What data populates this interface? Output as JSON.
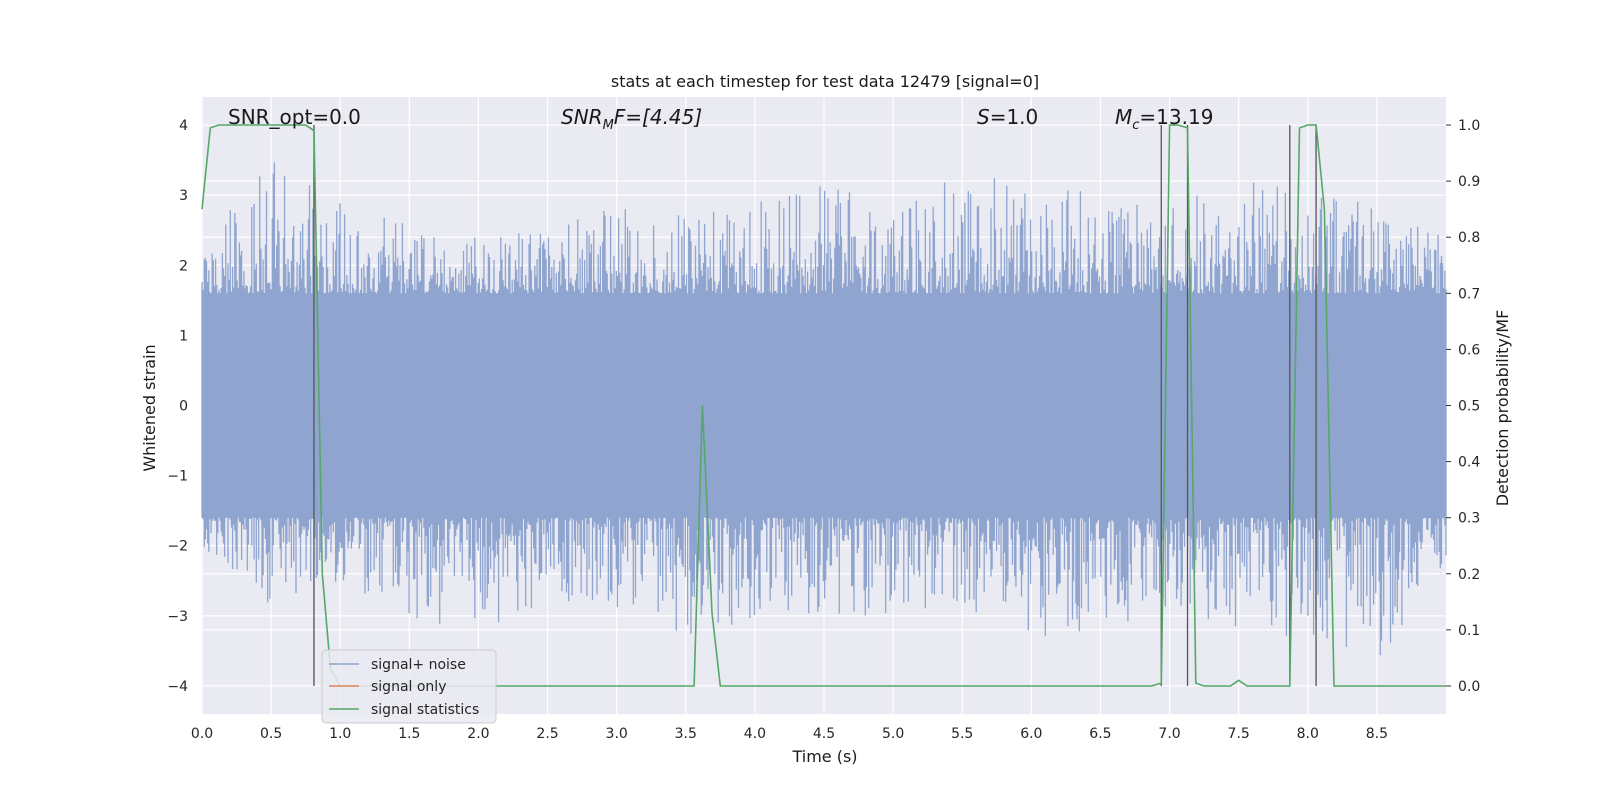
{
  "chart_data": {
    "type": "line",
    "title": "stats at each timestep for test data 12479 [signal=0]",
    "xlabel": "Time (s)",
    "ylabel": "Whitened strain",
    "y2label": "Detection probability/MF",
    "xlim": [
      0.0,
      9.0
    ],
    "ylim": [
      -4.4,
      4.4
    ],
    "y2lim": [
      -0.05,
      1.05
    ],
    "xticks": [
      "0.0",
      "0.5",
      "1.0",
      "1.5",
      "2.0",
      "2.5",
      "3.0",
      "3.5",
      "4.0",
      "4.5",
      "5.0",
      "5.5",
      "6.0",
      "6.5",
      "7.0",
      "7.5",
      "8.0",
      "8.5"
    ],
    "yticks": [
      "4",
      "3",
      "2",
      "1",
      "0",
      "−1",
      "−2",
      "−3",
      "−4"
    ],
    "y2ticks": [
      "1.0",
      "0.9",
      "0.8",
      "0.7",
      "0.6",
      "0.5",
      "0.4",
      "0.3",
      "0.2",
      "0.1",
      "0.0"
    ],
    "grid": true,
    "legend_position": "lower-left",
    "annotations": {
      "snr_opt": "SNR_opt=0.0",
      "snr_mf_main": "SNR",
      "snr_mf_sub": "M",
      "snr_mf_rest": "F=[4.45]",
      "s_main": "S",
      "s_rest": "=1.0",
      "mc_main": "M",
      "mc_sub": "c",
      "mc_rest": "=13.19"
    },
    "noise_envelope": {
      "x": [
        0.0,
        0.5,
        1.0,
        1.5,
        2.0,
        2.5,
        3.0,
        3.5,
        4.0,
        4.5,
        5.0,
        5.5,
        6.0,
        6.5,
        7.0,
        7.5,
        8.0,
        8.5,
        9.0
      ],
      "upper": [
        2.3,
        3.5,
        2.9,
        2.6,
        2.4,
        2.5,
        2.9,
        2.7,
        2.9,
        3.3,
        2.8,
        3.5,
        3.4,
        3.0,
        2.8,
        3.3,
        3.0,
        2.9,
        2.4
      ],
      "lower": [
        -2.0,
        -2.9,
        -2.5,
        -3.1,
        -3.2,
        -2.9,
        -2.9,
        -3.4,
        -3.1,
        -3.0,
        -3.1,
        -2.9,
        -3.4,
        -3.2,
        -3.0,
        -3.3,
        -3.3,
        -3.7,
        -2.5
      ],
      "dense": 1.6
    },
    "vertical_lines": [
      0.81,
      6.94,
      7.13,
      7.87,
      8.06
    ],
    "series": [
      {
        "name": "signal+ noise",
        "color": "#8fa5cf",
        "x": [],
        "y": []
      },
      {
        "name": "signal only",
        "color": "#dd8452",
        "x": [],
        "y": []
      },
      {
        "name": "signal statistics",
        "color": "#55a868",
        "axis": "right",
        "x": [
          0.0,
          0.06,
          0.12,
          0.75,
          0.81,
          0.87,
          0.93,
          1.0,
          2.0,
          3.0,
          3.56,
          3.62,
          3.69,
          3.75,
          4.0,
          5.0,
          6.0,
          6.87,
          6.94,
          7.0,
          7.06,
          7.13,
          7.19,
          7.25,
          7.44,
          7.5,
          7.56,
          7.81,
          7.87,
          7.94,
          8.0,
          8.06,
          8.12,
          8.19,
          8.25,
          9.0
        ],
        "y": [
          0.85,
          0.995,
          1.0,
          1.0,
          0.99,
          0.2,
          0.03,
          0.0,
          0.0,
          0.0,
          0.0,
          0.5,
          0.13,
          0.0,
          0.0,
          0.0,
          0.0,
          0.0,
          0.005,
          1.0,
          1.0,
          0.995,
          0.005,
          0.0,
          0.0,
          0.01,
          0.0,
          0.0,
          0.0,
          0.995,
          1.0,
          1.0,
          0.85,
          0.0,
          0.0,
          0.0
        ]
      }
    ]
  }
}
